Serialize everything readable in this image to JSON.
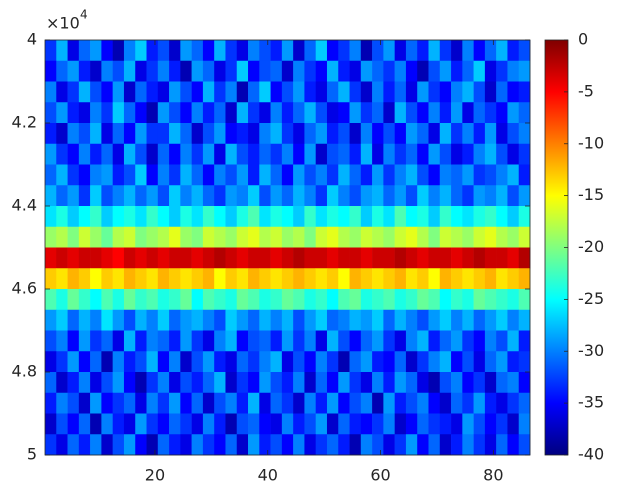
{
  "chart_data": {
    "type": "heatmap",
    "colormap": "jet",
    "x": [
      1.5,
      3.5,
      5.5,
      7.5,
      9.5,
      11.5,
      13.5,
      15.5,
      17.5,
      19.5,
      21.5,
      23.5,
      25.5,
      27.5,
      29.5,
      31.5,
      33.5,
      35.5,
      37.5,
      39.5,
      41.5,
      43.5,
      45.5,
      47.5,
      49.5,
      51.5,
      53.5,
      55.5,
      57.5,
      59.5,
      61.5,
      63.5,
      65.5,
      67.5,
      69.5,
      71.5,
      73.5,
      75.5,
      77.5,
      79.5,
      81.5,
      83.5,
      85.5
    ],
    "y": [
      40250,
      40750,
      41250,
      41750,
      42250,
      42750,
      43250,
      43750,
      44250,
      44750,
      45250,
      45750,
      46250,
      46750,
      47250,
      47750,
      48250,
      48750,
      49250,
      49750
    ],
    "z": [
      [
        -33,
        -28,
        -36,
        -31,
        -29,
        -35,
        -38,
        -30,
        -27,
        -34,
        -32,
        -37,
        -29,
        -31,
        -35,
        -28,
        -33,
        -36,
        -30,
        -32,
        -34,
        -29,
        -37,
        -31,
        -27,
        -35,
        -33,
        -30,
        -38,
        -32,
        -29,
        -36,
        -31,
        -34,
        -28,
        -33,
        -37,
        -30,
        -35,
        -31,
        -28,
        -34,
        -32
      ],
      [
        -35,
        -31,
        -29,
        -34,
        -37,
        -30,
        -32,
        -28,
        -36,
        -33,
        -30,
        -34,
        -38,
        -29,
        -31,
        -36,
        -33,
        -27,
        -35,
        -32,
        -31,
        -37,
        -30,
        -33,
        -35,
        -28,
        -34,
        -36,
        -29,
        -31,
        -33,
        -30,
        -35,
        -38,
        -32,
        -29,
        -34,
        -31,
        -27,
        -36,
        -33,
        -30,
        -29
      ],
      [
        -30,
        -36,
        -33,
        -28,
        -32,
        -35,
        -29,
        -37,
        -31,
        -34,
        -36,
        -29,
        -32,
        -35,
        -28,
        -33,
        -30,
        -38,
        -31,
        -27,
        -35,
        -32,
        -29,
        -34,
        -36,
        -31,
        -28,
        -33,
        -37,
        -30,
        -34,
        -31,
        -36,
        -29,
        -33,
        -35,
        -30,
        -28,
        -32,
        -37,
        -31,
        -35,
        -34
      ],
      [
        -32,
        -29,
        -34,
        -36,
        -30,
        -33,
        -27,
        -31,
        -35,
        -38,
        -29,
        -32,
        -35,
        -30,
        -34,
        -31,
        -37,
        -28,
        -33,
        -36,
        -30,
        -34,
        -31,
        -28,
        -32,
        -36,
        -35,
        -29,
        -33,
        -31,
        -37,
        -28,
        -32,
        -35,
        -30,
        -34,
        -29,
        -36,
        -31,
        -33,
        -35,
        -29,
        -31
      ],
      [
        -34,
        -37,
        -30,
        -32,
        -28,
        -36,
        -31,
        -35,
        -29,
        -33,
        -33,
        -28,
        -31,
        -37,
        -32,
        -29,
        -35,
        -34,
        -36,
        -30,
        -28,
        -33,
        -36,
        -31,
        -29,
        -34,
        -32,
        -37,
        -30,
        -35,
        -32,
        -35,
        -29,
        -31,
        -36,
        -28,
        -33,
        -30,
        -34,
        -29,
        -36,
        -32,
        -30
      ],
      [
        -29,
        -33,
        -35,
        -30,
        -34,
        -31,
        -36,
        -28,
        -32,
        -37,
        -31,
        -35,
        -30,
        -33,
        -29,
        -36,
        -28,
        -32,
        -34,
        -31,
        -33,
        -30,
        -35,
        -29,
        -37,
        -32,
        -31,
        -34,
        -28,
        -36,
        -30,
        -33,
        -31,
        -35,
        -29,
        -32,
        -36,
        -34,
        -30,
        -28,
        -32,
        -36,
        -33
      ],
      [
        -31,
        -28,
        -33,
        -35,
        -30,
        -29,
        -34,
        -32,
        -27,
        -35,
        -30,
        -33,
        -28,
        -31,
        -35,
        -30,
        -32,
        -29,
        -34,
        -28,
        -31,
        -35,
        -29,
        -32,
        -30,
        -33,
        -28,
        -31,
        -34,
        -29,
        -33,
        -30,
        -28,
        -32,
        -35,
        -30,
        -31,
        -29,
        -33,
        -32,
        -30,
        -28,
        -34
      ],
      [
        -28,
        -31,
        -29,
        -33,
        -27,
        -32,
        -30,
        -28,
        -31,
        -29,
        -32,
        -27,
        -30,
        -28,
        -31,
        -33,
        -29,
        -30,
        -27,
        -32,
        -29,
        -31,
        -28,
        -30,
        -33,
        -27,
        -30,
        -32,
        -29,
        -28,
        -31,
        -29,
        -32,
        -27,
        -30,
        -28,
        -31,
        -33,
        -29,
        -30,
        -28,
        -32,
        -29
      ],
      [
        -26,
        -24,
        -27,
        -25,
        -23,
        -27,
        -25,
        -24,
        -26,
        -23,
        -25,
        -27,
        -24,
        -26,
        -23,
        -25,
        -27,
        -24,
        -22,
        -26,
        -24,
        -25,
        -27,
        -23,
        -26,
        -24,
        -25,
        -23,
        -27,
        -24,
        -26,
        -22,
        -25,
        -24,
        -27,
        -23,
        -25,
        -26,
        -24,
        -23,
        -25,
        -27,
        -24
      ],
      [
        -19,
        -18,
        -20,
        -17,
        -19,
        -21,
        -18,
        -17,
        -20,
        -19,
        -18,
        -16,
        -19,
        -20,
        -17,
        -18,
        -19,
        -17,
        -16,
        -18,
        -17,
        -19,
        -18,
        -20,
        -17,
        -16,
        -18,
        -19,
        -17,
        -18,
        -19,
        -17,
        -16,
        -18,
        -20,
        -17,
        -18,
        -19,
        -17,
        -16,
        -18,
        -19,
        -17
      ],
      [
        -4,
        -3,
        -4,
        -3,
        -3,
        -4,
        -5,
        -3,
        -4,
        -3,
        -4,
        -3,
        -3,
        -4,
        -3,
        -2,
        -3,
        -4,
        -3,
        -3,
        -4,
        -3,
        -2,
        -3,
        -3,
        -4,
        -3,
        -3,
        -4,
        -3,
        -3,
        -2,
        -3,
        -4,
        -3,
        -3,
        -4,
        -3,
        -2,
        -3,
        -3,
        -4,
        -2
      ],
      [
        -13,
        -14,
        -12,
        -13,
        -15,
        -13,
        -14,
        -12,
        -13,
        -14,
        -12,
        -13,
        -14,
        -13,
        -12,
        -15,
        -13,
        -14,
        -12,
        -13,
        -14,
        -13,
        -12,
        -13,
        -14,
        -13,
        -15,
        -12,
        -13,
        -14,
        -13,
        -12,
        -14,
        -13,
        -15,
        -12,
        -13,
        -14,
        -13,
        -12,
        -14,
        -13,
        -12
      ],
      [
        -22,
        -24,
        -21,
        -23,
        -25,
        -22,
        -24,
        -21,
        -23,
        -22,
        -24,
        -23,
        -21,
        -25,
        -22,
        -23,
        -24,
        -21,
        -22,
        -24,
        -23,
        -21,
        -22,
        -24,
        -23,
        -25,
        -22,
        -21,
        -24,
        -23,
        -22,
        -24,
        -23,
        -21,
        -22,
        -25,
        -23,
        -24,
        -21,
        -22,
        -23,
        -24,
        -22
      ],
      [
        -29,
        -27,
        -31,
        -28,
        -30,
        -26,
        -29,
        -32,
        -28,
        -30,
        -27,
        -31,
        -29,
        -28,
        -30,
        -32,
        -27,
        -29,
        -31,
        -28,
        -30,
        -28,
        -32,
        -29,
        -27,
        -31,
        -30,
        -28,
        -29,
        -27,
        -31,
        -28,
        -30,
        -32,
        -29,
        -27,
        -30,
        -28,
        -31,
        -29,
        -27,
        -30,
        -28
      ],
      [
        -32,
        -30,
        -35,
        -29,
        -33,
        -31,
        -36,
        -28,
        -34,
        -30,
        -31,
        -34,
        -29,
        -33,
        -36,
        -30,
        -28,
        -35,
        -32,
        -31,
        -34,
        -29,
        -33,
        -30,
        -36,
        -28,
        -32,
        -35,
        -31,
        -29,
        -33,
        -36,
        -30,
        -28,
        -34,
        -31,
        -29,
        -33,
        -35,
        -30,
        -32,
        -28,
        -34
      ],
      [
        -36,
        -33,
        -29,
        -35,
        -31,
        -38,
        -30,
        -34,
        -32,
        -28,
        -35,
        -30,
        -37,
        -32,
        -29,
        -34,
        -36,
        -31,
        -33,
        -30,
        -28,
        -36,
        -32,
        -35,
        -30,
        -33,
        -38,
        -31,
        -29,
        -34,
        -35,
        -31,
        -37,
        -33,
        -30,
        -28,
        -35,
        -32,
        -36,
        -31,
        -29,
        -34,
        -33
      ],
      [
        -31,
        -37,
        -34,
        -30,
        -36,
        -32,
        -29,
        -35,
        -38,
        -33,
        -30,
        -36,
        -32,
        -34,
        -31,
        -28,
        -37,
        -33,
        -35,
        -29,
        -32,
        -34,
        -30,
        -37,
        -31,
        -35,
        -29,
        -33,
        -36,
        -30,
        -34,
        -29,
        -31,
        -36,
        -38,
        -32,
        -30,
        -35,
        -33,
        -37,
        -31,
        -30,
        -35
      ],
      [
        -34,
        -30,
        -32,
        -37,
        -29,
        -35,
        -33,
        -31,
        -36,
        -30,
        -33,
        -29,
        -35,
        -31,
        -37,
        -32,
        -30,
        -34,
        -28,
        -36,
        -31,
        -33,
        -37,
        -30,
        -34,
        -29,
        -35,
        -32,
        -30,
        -38,
        -29,
        -34,
        -32,
        -30,
        -35,
        -37,
        -31,
        -33,
        -29,
        -34,
        -36,
        -33,
        -31
      ],
      [
        -37,
        -32,
        -35,
        -31,
        -38,
        -30,
        -34,
        -36,
        -29,
        -33,
        -35,
        -31,
        -33,
        -36,
        -30,
        -34,
        -38,
        -32,
        -31,
        -35,
        -36,
        -30,
        -34,
        -32,
        -29,
        -37,
        -31,
        -34,
        -35,
        -33,
        -30,
        -37,
        -35,
        -31,
        -33,
        -34,
        -36,
        -29,
        -32,
        -35,
        -33,
        -37,
        -30
      ],
      [
        -33,
        -36,
        -31,
        -34,
        -30,
        -37,
        -32,
        -29,
        -35,
        -38,
        -31,
        -34,
        -36,
        -30,
        -33,
        -35,
        -31,
        -37,
        -29,
        -34,
        -32,
        -35,
        -30,
        -36,
        -33,
        -31,
        -34,
        -38,
        -30,
        -32,
        -36,
        -33,
        -29,
        -35,
        -31,
        -37,
        -34,
        -30,
        -33,
        -36,
        -31,
        -35,
        -32
      ]
    ],
    "xlim": [
      0.5,
      86.5
    ],
    "xticks": [
      20,
      40,
      60,
      80
    ],
    "ylim": [
      40000,
      50000
    ],
    "y_reversed": true,
    "yticks": [
      {
        "value": 40000,
        "label": "4"
      },
      {
        "value": 42000,
        "label": "4.2"
      },
      {
        "value": 44000,
        "label": "4.4"
      },
      {
        "value": 46000,
        "label": "4.6"
      },
      {
        "value": 48000,
        "label": "4.8"
      },
      {
        "value": 50000,
        "label": "5"
      }
    ],
    "y_exponent_base": "×10",
    "y_exponent_power": "4",
    "clim": [
      -40,
      0
    ],
    "colorbar_ticks": [
      0,
      -5,
      -10,
      -15,
      -20,
      -25,
      -30,
      -35,
      -40
    ]
  }
}
